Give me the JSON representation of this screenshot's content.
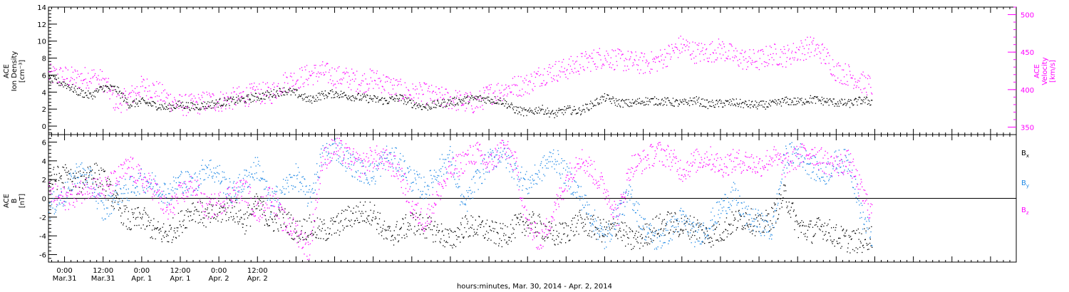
{
  "colors": {
    "axis": "#000000",
    "density": "#000000",
    "velocity": "#ff00ff",
    "bx": "#000000",
    "by": "#1e88e5",
    "bz": "#ff00ff"
  },
  "chart_data": [
    {
      "type": "scatter",
      "panel": "top",
      "ylabel_lines": [
        "ACE",
        "Ion Density",
        "[cm⁻³]"
      ],
      "ylim": [
        -1,
        14
      ],
      "yticks": [
        0,
        2,
        4,
        6,
        8,
        10,
        12,
        14
      ],
      "ylabel_right_lines": [
        "ACE",
        "Velocity",
        "[km/s]"
      ],
      "ylim_right": [
        340,
        510
      ],
      "yticks_right": [
        350,
        400,
        450,
        500
      ],
      "series": [
        {
          "axis": "left",
          "x": [
            -5,
            0,
            4,
            8,
            12,
            16,
            20,
            24,
            28,
            32,
            36,
            40,
            44,
            48,
            52,
            56,
            60,
            64,
            68,
            72,
            76,
            80,
            84,
            88,
            92,
            96,
            100,
            104,
            108,
            112,
            116,
            120,
            124,
            128,
            132,
            136,
            140,
            144,
            148,
            152,
            156,
            160,
            164,
            168,
            172,
            176,
            180,
            184,
            188,
            192,
            196,
            200,
            204,
            208,
            212,
            216,
            220,
            224,
            228,
            232,
            236,
            240,
            244,
            248,
            251
          ],
          "values": [
            5.6,
            5.0,
            4.1,
            3.6,
            4.6,
            4.4,
            2.6,
            2.9,
            2.5,
            2.2,
            2.6,
            2.3,
            2.5,
            2.8,
            3.0,
            3.2,
            3.5,
            3.8,
            4.2,
            3.9,
            3.1,
            3.7,
            3.9,
            3.6,
            3.4,
            3.2,
            3.0,
            3.4,
            2.7,
            2.3,
            2.6,
            2.9,
            3.1,
            3.3,
            3.2,
            3.0,
            2.0,
            1.6,
            2.1,
            1.4,
            2.0,
            1.8,
            2.6,
            3.4,
            2.8,
            2.7,
            3.0,
            3.0,
            2.9,
            2.7,
            3.1,
            2.6,
            2.7,
            2.8,
            2.6,
            2.5,
            2.6,
            3.0,
            2.9,
            3.2,
            3.0,
            2.8,
            2.7,
            3.1,
            2.9
          ]
        },
        {
          "axis": "right",
          "x": [
            -5,
            0,
            4,
            8,
            12,
            16,
            20,
            24,
            28,
            32,
            36,
            40,
            44,
            48,
            52,
            56,
            60,
            64,
            68,
            72,
            76,
            80,
            84,
            88,
            92,
            96,
            100,
            104,
            108,
            112,
            116,
            120,
            124,
            128,
            132,
            136,
            140,
            144,
            148,
            152,
            156,
            160,
            164,
            168,
            172,
            176,
            180,
            184,
            188,
            192,
            196,
            200,
            204,
            208,
            212,
            216,
            220,
            224,
            228,
            232,
            236,
            240,
            244,
            248,
            251
          ],
          "values": [
            420,
            418,
            415,
            418,
            412,
            382,
            390,
            405,
            400,
            388,
            380,
            380,
            385,
            385,
            388,
            392,
            396,
            395,
            410,
            415,
            420,
            424,
            418,
            416,
            410,
            415,
            408,
            400,
            395,
            395,
            390,
            388,
            384,
            382,
            395,
            400,
            405,
            408,
            420,
            425,
            428,
            435,
            440,
            445,
            440,
            438,
            435,
            438,
            448,
            460,
            450,
            450,
            455,
            445,
            440,
            440,
            448,
            445,
            452,
            458,
            448,
            425,
            420,
            410,
            405
          ]
        }
      ]
    },
    {
      "type": "scatter",
      "panel": "bottom",
      "ylabel_lines": [
        "ACE",
        "B",
        "[nT]"
      ],
      "ylim": [
        -6.8,
        6.8
      ],
      "yticks": [
        -6,
        -4,
        -2,
        0,
        2,
        4,
        6
      ],
      "xlabel": "hours:minutes, Mar. 30, 2014 - Apr. 2, 2014",
      "xlim": [
        -5,
        296
      ],
      "xticks": [
        0,
        12,
        24,
        36,
        48,
        60
      ],
      "xtick_labels": [
        [
          "0:00",
          "Mar.31"
        ],
        [
          "12:00",
          "Mar.31"
        ],
        [
          "0:00",
          "Apr. 1"
        ],
        [
          "12:00",
          "Apr. 1"
        ],
        [
          "0:00",
          "Apr. 2"
        ],
        [
          "12:00",
          "Apr. 2"
        ]
      ],
      "series": [
        {
          "name": "Bx",
          "legend_main": "B",
          "legend_sub": "x",
          "x": [
            -5,
            0,
            4,
            8,
            12,
            16,
            20,
            24,
            28,
            32,
            36,
            40,
            44,
            48,
            52,
            56,
            60,
            64,
            68,
            72,
            76,
            80,
            84,
            88,
            92,
            96,
            100,
            104,
            108,
            112,
            116,
            120,
            124,
            128,
            132,
            136,
            140,
            144,
            148,
            152,
            156,
            160,
            164,
            168,
            172,
            176,
            180,
            184,
            188,
            192,
            196,
            200,
            204,
            208,
            212,
            216,
            220,
            224,
            228,
            232,
            236,
            240,
            244,
            248,
            251
          ],
          "values": [
            2.0,
            2.5,
            1.5,
            3.0,
            2.0,
            -0.5,
            -2.5,
            -2.0,
            -3.5,
            -3.8,
            -2.5,
            -1.0,
            -2.0,
            -1.5,
            -1.0,
            -2.5,
            -0.5,
            -2.5,
            -2.0,
            -3.5,
            -3.0,
            -3.5,
            -3.0,
            -2.0,
            -1.5,
            -1.5,
            -4.0,
            -3.5,
            -2.5,
            -3.0,
            -3.5,
            -4.5,
            -3.0,
            -3.0,
            -3.5,
            -4.0,
            -3.0,
            -2.5,
            -3.0,
            -4.0,
            -3.5,
            -2.5,
            -3.0,
            -3.5,
            -3.0,
            -4.5,
            -4.0,
            -3.0,
            -2.5,
            -3.0,
            -3.0,
            -4.0,
            -3.5,
            -2.5,
            -2.0,
            -3.0,
            -2.0,
            0.5,
            -3.0,
            -3.5,
            -3.0,
            -4.0,
            -4.5,
            -4.5,
            -4.0
          ]
        },
        {
          "name": "By",
          "legend_main": "B",
          "legend_sub": "y",
          "x": [
            -5,
            0,
            4,
            8,
            12,
            16,
            20,
            24,
            28,
            32,
            36,
            40,
            44,
            48,
            52,
            56,
            60,
            64,
            68,
            72,
            76,
            80,
            84,
            88,
            92,
            96,
            100,
            104,
            108,
            112,
            116,
            120,
            124,
            128,
            132,
            136,
            140,
            144,
            148,
            152,
            156,
            160,
            164,
            168,
            172,
            176,
            180,
            184,
            188,
            192,
            196,
            200,
            204,
            208,
            212,
            216,
            220,
            224,
            228,
            232,
            236,
            240,
            244,
            248,
            251
          ],
          "values": [
            -1.0,
            0.5,
            3.0,
            2.0,
            -1.5,
            0.5,
            1.0,
            2.0,
            1.5,
            0.5,
            2.0,
            1.5,
            3.5,
            2.5,
            0.5,
            2.0,
            3.5,
            -0.5,
            1.0,
            2.5,
            0.0,
            4.5,
            5.5,
            4.0,
            3.0,
            2.5,
            4.5,
            4.0,
            2.0,
            1.0,
            3.0,
            4.5,
            -1.0,
            2.0,
            4.0,
            5.0,
            3.0,
            1.5,
            3.0,
            4.5,
            2.5,
            0.5,
            -2.0,
            -4.5,
            -1.5,
            0.5,
            -3.0,
            -4.5,
            -3.5,
            -2.0,
            -4.0,
            -3.0,
            -1.0,
            0.5,
            -2.0,
            -2.5,
            -3.5,
            4.5,
            5.0,
            3.5,
            2.5,
            4.0,
            4.0,
            -2.0,
            -4.0
          ]
        },
        {
          "name": "Bz",
          "legend_main": "B",
          "legend_sub": "z",
          "x": [
            -5,
            0,
            4,
            8,
            12,
            16,
            20,
            24,
            28,
            32,
            36,
            40,
            44,
            48,
            52,
            56,
            60,
            64,
            68,
            72,
            76,
            80,
            84,
            88,
            92,
            96,
            100,
            104,
            108,
            112,
            116,
            120,
            124,
            128,
            132,
            136,
            140,
            144,
            148,
            152,
            156,
            160,
            164,
            168,
            172,
            176,
            180,
            184,
            188,
            192,
            196,
            200,
            204,
            208,
            212,
            216,
            220,
            224,
            228,
            232,
            236,
            240,
            244,
            248,
            251
          ],
          "values": [
            0.5,
            0.0,
            0.5,
            1.5,
            1.0,
            2.0,
            3.5,
            2.0,
            1.0,
            -1.5,
            0.5,
            1.5,
            -1.0,
            -0.5,
            0.5,
            1.0,
            -1.5,
            0.5,
            -2.5,
            -3.5,
            -5.5,
            4.0,
            5.5,
            4.5,
            3.5,
            4.5,
            4.0,
            3.0,
            -1.0,
            -2.5,
            0.5,
            3.0,
            4.0,
            5.0,
            3.5,
            5.5,
            4.0,
            -3.0,
            -4.5,
            -1.5,
            2.0,
            4.5,
            3.0,
            1.0,
            -2.0,
            3.5,
            4.0,
            5.0,
            4.5,
            3.0,
            4.0,
            4.5,
            3.5,
            4.0,
            4.0,
            3.5,
            4.5,
            3.5,
            4.5,
            5.0,
            4.0,
            3.5,
            4.0,
            0.5,
            -1.5
          ]
        }
      ]
    }
  ]
}
